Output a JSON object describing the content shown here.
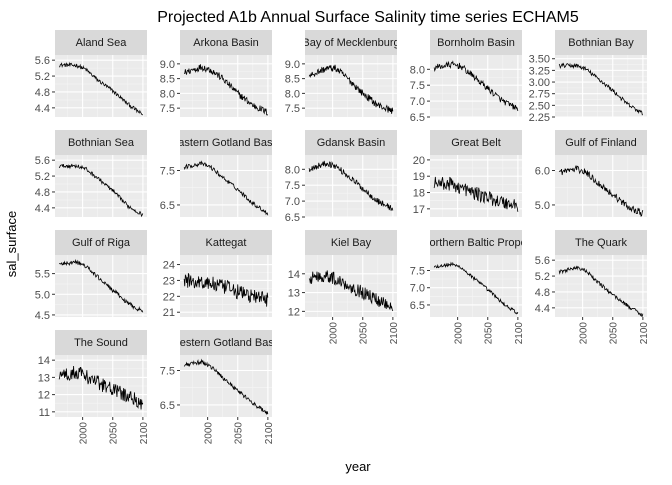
{
  "chart_data": {
    "type": "line",
    "title": "Projected A1b Annual Surface Salinity time series ECHAM5",
    "xlabel": "year",
    "ylabel": "sal_surface",
    "xlim": [
      1961,
      2100
    ],
    "x_ticks": [
      2000,
      2050,
      2100
    ],
    "x_tick_labels": [
      "2000",
      "2050",
      "2100"
    ],
    "grid": true,
    "panels": [
      {
        "name": "Aland Sea",
        "y_ticks": [
          4.4,
          4.8,
          5.2,
          5.6
        ],
        "y_tick_labels": [
          "4.4",
          "4.8",
          "5.2",
          "5.6"
        ],
        "ylim": [
          4.17,
          5.73
        ],
        "profile": [
          [
            1961,
            5.48
          ],
          [
            1990,
            5.47
          ],
          [
            2005,
            5.37
          ],
          [
            2025,
            5.1
          ],
          [
            2050,
            4.83
          ],
          [
            2075,
            4.5
          ],
          [
            2100,
            4.22
          ]
        ],
        "noise": 0.05
      },
      {
        "name": "Arkona Basin",
        "y_ticks": [
          7.5,
          8.0,
          8.5,
          9.0
        ],
        "y_tick_labels": [
          "7.5",
          "8.0",
          "8.5",
          "9.0"
        ],
        "ylim": [
          7.2,
          9.3
        ],
        "profile": [
          [
            1961,
            8.7
          ],
          [
            1990,
            8.9
          ],
          [
            2005,
            8.8
          ],
          [
            2025,
            8.5
          ],
          [
            2050,
            8.0
          ],
          [
            2075,
            7.6
          ],
          [
            2100,
            7.35
          ]
        ],
        "noise": 0.12
      },
      {
        "name": "Bay of Mecklenburg",
        "y_ticks": [
          7.5,
          8.0,
          8.5,
          9.0
        ],
        "y_tick_labels": [
          "7.5",
          "8.0",
          "8.5",
          "9.0"
        ],
        "ylim": [
          7.2,
          9.3
        ],
        "profile": [
          [
            1961,
            8.6
          ],
          [
            1990,
            8.85
          ],
          [
            2005,
            8.85
          ],
          [
            2025,
            8.5
          ],
          [
            2050,
            8.0
          ],
          [
            2075,
            7.6
          ],
          [
            2100,
            7.4
          ]
        ],
        "noise": 0.12
      },
      {
        "name": "Bornholm Basin",
        "y_ticks": [
          6.5,
          7.0,
          7.5,
          8.0
        ],
        "y_tick_labels": [
          "6.5",
          "7.0",
          "7.5",
          "8.0"
        ],
        "ylim": [
          6.5,
          8.45
        ],
        "profile": [
          [
            1961,
            8.05
          ],
          [
            1990,
            8.15
          ],
          [
            2005,
            8.1
          ],
          [
            2025,
            7.8
          ],
          [
            2050,
            7.4
          ],
          [
            2075,
            7.0
          ],
          [
            2100,
            6.75
          ]
        ],
        "noise": 0.1
      },
      {
        "name": "Bothnian Bay",
        "y_ticks": [
          2.25,
          2.5,
          2.75,
          3.0,
          3.25,
          3.5
        ],
        "y_tick_labels": [
          "2.25",
          "2.50",
          "2.75",
          "3.00",
          "3.25",
          "3.50"
        ],
        "ylim": [
          2.25,
          3.58
        ],
        "profile": [
          [
            1961,
            3.35
          ],
          [
            1990,
            3.35
          ],
          [
            2005,
            3.28
          ],
          [
            2025,
            3.08
          ],
          [
            2050,
            2.82
          ],
          [
            2075,
            2.52
          ],
          [
            2100,
            2.32
          ]
        ],
        "noise": 0.045
      },
      {
        "name": "Bothnian Sea",
        "y_ticks": [
          4.4,
          4.8,
          5.2,
          5.6
        ],
        "y_tick_labels": [
          "4.4",
          "4.8",
          "5.2",
          "5.6"
        ],
        "ylim": [
          4.17,
          5.73
        ],
        "profile": [
          [
            1961,
            5.45
          ],
          [
            1990,
            5.46
          ],
          [
            2005,
            5.38
          ],
          [
            2025,
            5.15
          ],
          [
            2050,
            4.83
          ],
          [
            2075,
            4.45
          ],
          [
            2100,
            4.22
          ]
        ],
        "noise": 0.05
      },
      {
        "name": "Eastern Gotland Basin",
        "y_ticks": [
          6.5,
          7.5
        ],
        "y_tick_labels": [
          "6.5",
          "7.5"
        ],
        "ylim": [
          6.15,
          7.95
        ],
        "profile": [
          [
            1961,
            7.6
          ],
          [
            1990,
            7.7
          ],
          [
            2005,
            7.6
          ],
          [
            2025,
            7.3
          ],
          [
            2050,
            6.95
          ],
          [
            2075,
            6.55
          ],
          [
            2100,
            6.25
          ]
        ],
        "noise": 0.06
      },
      {
        "name": "Gdansk Basin",
        "y_ticks": [
          6.5,
          7.0,
          7.5,
          8.0
        ],
        "y_tick_labels": [
          "6.5",
          "7.0",
          "7.5",
          "8.0"
        ],
        "ylim": [
          6.5,
          8.45
        ],
        "profile": [
          [
            1961,
            8.0
          ],
          [
            1990,
            8.2
          ],
          [
            2005,
            8.1
          ],
          [
            2025,
            7.8
          ],
          [
            2050,
            7.4
          ],
          [
            2075,
            7.0
          ],
          [
            2100,
            6.75
          ]
        ],
        "noise": 0.1
      },
      {
        "name": "Great Belt",
        "y_ticks": [
          17,
          18,
          19,
          20
        ],
        "y_tick_labels": [
          "17",
          "18",
          "19",
          "20"
        ],
        "ylim": [
          16.5,
          20.3
        ],
        "profile": [
          [
            1961,
            18.6
          ],
          [
            1990,
            18.5
          ],
          [
            2005,
            18.3
          ],
          [
            2025,
            18.0
          ],
          [
            2050,
            17.7
          ],
          [
            2075,
            17.4
          ],
          [
            2100,
            17.2
          ]
        ],
        "noise": 0.42
      },
      {
        "name": "Gulf of Finland",
        "y_ticks": [
          5.0,
          6.0
        ],
        "y_tick_labels": [
          "5.0",
          "6.0"
        ],
        "ylim": [
          4.65,
          6.45
        ],
        "profile": [
          [
            1961,
            5.95
          ],
          [
            1990,
            6.05
          ],
          [
            2005,
            5.95
          ],
          [
            2025,
            5.65
          ],
          [
            2050,
            5.3
          ],
          [
            2075,
            4.95
          ],
          [
            2100,
            4.75
          ]
        ],
        "noise": 0.1
      },
      {
        "name": "Gulf of Riga",
        "y_ticks": [
          4.5,
          5.0,
          5.5
        ],
        "y_tick_labels": [
          "4.5",
          "5.0",
          "5.5"
        ],
        "ylim": [
          4.45,
          5.95
        ],
        "profile": [
          [
            1961,
            5.72
          ],
          [
            1990,
            5.78
          ],
          [
            2005,
            5.68
          ],
          [
            2025,
            5.42
          ],
          [
            2050,
            5.1
          ],
          [
            2075,
            4.78
          ],
          [
            2100,
            4.58
          ]
        ],
        "noise": 0.05
      },
      {
        "name": "Kattegat",
        "y_ticks": [
          21,
          22,
          23,
          24
        ],
        "y_tick_labels": [
          "21",
          "22",
          "23",
          "24"
        ],
        "ylim": [
          20.7,
          24.6
        ],
        "profile": [
          [
            1961,
            23.0
          ],
          [
            1990,
            22.9
          ],
          [
            2005,
            22.8
          ],
          [
            2025,
            22.6
          ],
          [
            2050,
            22.3
          ],
          [
            2075,
            22.0
          ],
          [
            2100,
            21.8
          ]
        ],
        "noise": 0.48
      },
      {
        "name": "Kiel Bay",
        "y_ticks": [
          12,
          13,
          14
        ],
        "y_tick_labels": [
          "12",
          "13",
          "14"
        ],
        "ylim": [
          11.7,
          15.0
        ],
        "profile": [
          [
            1961,
            13.8
          ],
          [
            1990,
            13.9
          ],
          [
            2005,
            13.7
          ],
          [
            2025,
            13.4
          ],
          [
            2050,
            13.0
          ],
          [
            2075,
            12.6
          ],
          [
            2100,
            12.3
          ]
        ],
        "noise": 0.35
      },
      {
        "name": "Northern Baltic Proper",
        "y_ticks": [
          6.5,
          7.0,
          7.5
        ],
        "y_tick_labels": [
          "6.5",
          "7.0",
          "7.5"
        ],
        "ylim": [
          6.15,
          7.95
        ],
        "profile": [
          [
            1961,
            7.6
          ],
          [
            1990,
            7.68
          ],
          [
            2005,
            7.6
          ],
          [
            2025,
            7.3
          ],
          [
            2050,
            6.95
          ],
          [
            2075,
            6.55
          ],
          [
            2100,
            6.25
          ]
        ],
        "noise": 0.05
      },
      {
        "name": "The Quark",
        "y_ticks": [
          4.4,
          4.8,
          5.2,
          5.6
        ],
        "y_tick_labels": [
          "4.4",
          "4.8",
          "5.2",
          "5.6"
        ],
        "ylim": [
          4.17,
          5.73
        ],
        "profile": [
          [
            1961,
            5.3
          ],
          [
            1990,
            5.42
          ],
          [
            2005,
            5.33
          ],
          [
            2025,
            5.05
          ],
          [
            2050,
            4.73
          ],
          [
            2075,
            4.45
          ],
          [
            2100,
            4.22
          ]
        ],
        "noise": 0.05
      },
      {
        "name": "The Sound",
        "y_ticks": [
          11,
          12,
          13,
          14
        ],
        "y_tick_labels": [
          "11",
          "12",
          "13",
          "14"
        ],
        "ylim": [
          10.7,
          14.3
        ],
        "profile": [
          [
            1961,
            13.1
          ],
          [
            1990,
            13.3
          ],
          [
            2005,
            13.1
          ],
          [
            2025,
            12.7
          ],
          [
            2050,
            12.3
          ],
          [
            2075,
            11.9
          ],
          [
            2100,
            11.5
          ]
        ],
        "noise": 0.42
      },
      {
        "name": "Western Gotland Basin",
        "y_ticks": [
          6.5,
          7.5
        ],
        "y_tick_labels": [
          "6.5",
          "7.5"
        ],
        "ylim": [
          6.15,
          7.95
        ],
        "profile": [
          [
            1961,
            7.65
          ],
          [
            1990,
            7.75
          ],
          [
            2005,
            7.62
          ],
          [
            2025,
            7.3
          ],
          [
            2050,
            6.92
          ],
          [
            2075,
            6.55
          ],
          [
            2100,
            6.25
          ]
        ],
        "noise": 0.06
      }
    ]
  }
}
